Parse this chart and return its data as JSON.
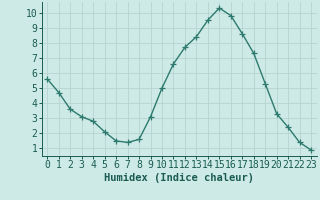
{
  "x": [
    0,
    1,
    2,
    3,
    4,
    5,
    6,
    7,
    8,
    9,
    10,
    11,
    12,
    13,
    14,
    15,
    16,
    17,
    18,
    19,
    20,
    21,
    22,
    23
  ],
  "y": [
    5.6,
    4.7,
    3.6,
    3.1,
    2.8,
    2.1,
    1.5,
    1.4,
    1.6,
    3.1,
    5.0,
    6.6,
    7.7,
    8.4,
    9.5,
    10.3,
    9.8,
    8.6,
    7.3,
    5.3,
    3.3,
    2.4,
    1.4,
    0.9
  ],
  "line_color": "#2d7a6e",
  "marker": "+",
  "marker_size": 4,
  "bg_color": "#ceeae6",
  "grid_color": "#b8d4d0",
  "axis_color": "#1a5c52",
  "xlabel": "Humidex (Indice chaleur)",
  "xlabel_fontsize": 7.5,
  "tick_fontsize": 7,
  "ylim": [
    0.5,
    10.7
  ],
  "xlim": [
    -0.5,
    23.5
  ],
  "yticks": [
    1,
    2,
    3,
    4,
    5,
    6,
    7,
    8,
    9,
    10
  ],
  "xticks": [
    0,
    1,
    2,
    3,
    4,
    5,
    6,
    7,
    8,
    9,
    10,
    11,
    12,
    13,
    14,
    15,
    16,
    17,
    18,
    19,
    20,
    21,
    22,
    23
  ]
}
